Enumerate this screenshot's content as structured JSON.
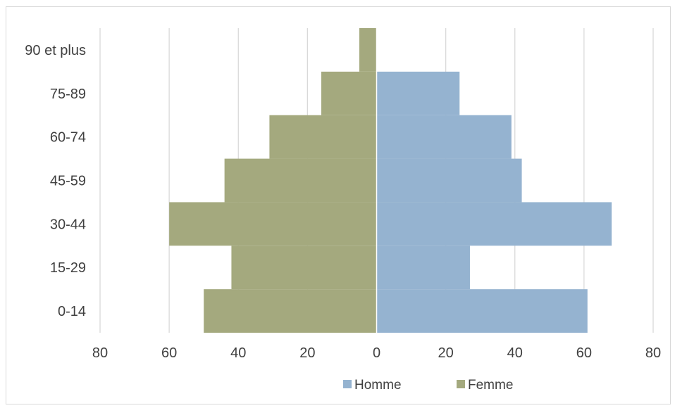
{
  "chart_data": {
    "type": "bar",
    "orientation": "horizontal",
    "stacked_pyramid": true,
    "categories": [
      "0-14",
      "15-29",
      "30-44",
      "45-59",
      "60-74",
      "75-89",
      "90 et plus"
    ],
    "series": [
      {
        "name": "Homme",
        "color": "#95b3d0",
        "values": [
          61,
          27,
          68,
          42,
          39,
          24,
          0
        ]
      },
      {
        "name": "Femme",
        "color": "#a4a97e",
        "values": [
          50,
          42,
          60,
          44,
          31,
          16,
          5
        ]
      }
    ],
    "x_ticks": [
      {
        "value": -80,
        "label": "80"
      },
      {
        "value": -60,
        "label": "60"
      },
      {
        "value": -40,
        "label": "40"
      },
      {
        "value": -20,
        "label": "20"
      },
      {
        "value": 0,
        "label": "0"
      },
      {
        "value": 20,
        "label": "20"
      },
      {
        "value": 40,
        "label": "40"
      },
      {
        "value": 60,
        "label": "60"
      },
      {
        "value": 80,
        "label": "80"
      }
    ],
    "xlim": [
      -80,
      80
    ],
    "grid": true,
    "legend_position": "bottom",
    "title": "",
    "xlabel": "",
    "ylabel": ""
  }
}
